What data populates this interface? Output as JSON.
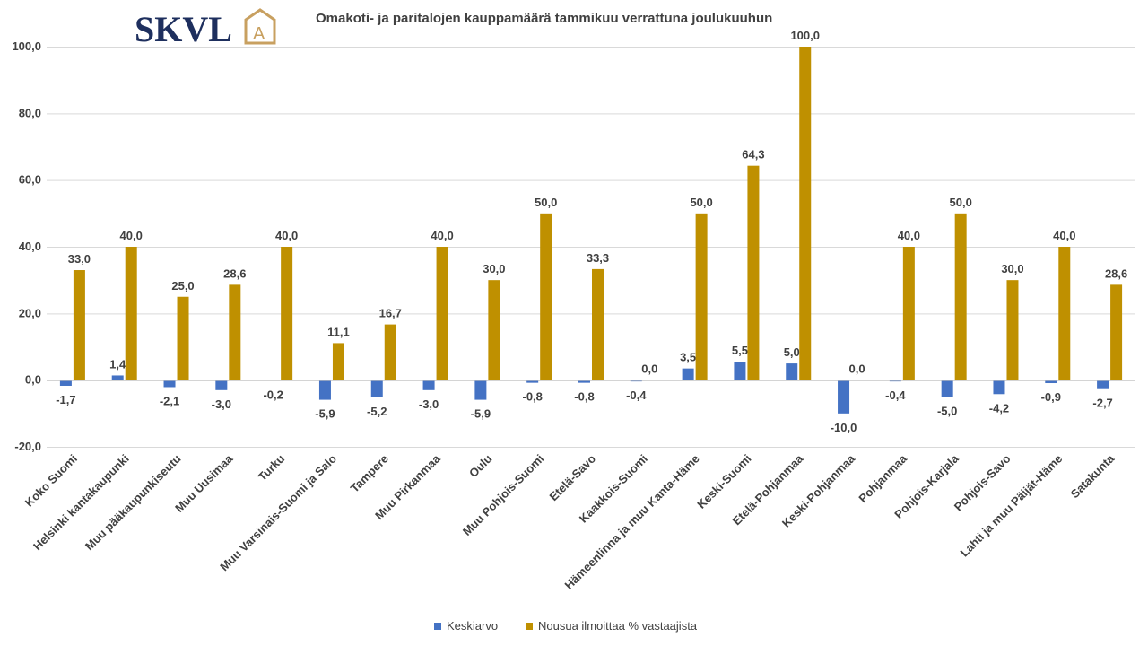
{
  "logo": {
    "text": "SKVL",
    "mark": "A",
    "colors": {
      "text": "#1e2f5e",
      "mark": "#c8a060"
    }
  },
  "chart_data": {
    "type": "bar",
    "title": "Omakoti- ja paritalojen kauppamäärä  tammikuu verrattuna joulukuuhun",
    "categories": [
      "Koko Suomi",
      "Helsinki kantakaupunki",
      "Muu pääkaupunkiseutu",
      "Muu Uusimaa",
      "Turku",
      "Muu Varsinais-Suomi ja Salo",
      "Tampere",
      "Muu Pirkanmaa",
      "Oulu",
      "Muu Pohjois-Suomi",
      "Etelä-Savo",
      "Kaakkois-Suomi",
      "Hämeenlinna ja muu Kanta-Häme",
      "Keski-Suomi",
      "Etelä-Pohjanmaa",
      "Keski-Pohjanmaa",
      "Pohjanmaa",
      "Pohjois-Karjala",
      "Pohjois-Savo",
      "Lahti ja muu Päijät-Häme",
      "Satakunta"
    ],
    "series": [
      {
        "name": "Keskiarvo",
        "color": "#4472c4",
        "values": [
          -1.7,
          1.4,
          -2.1,
          -3.0,
          -0.2,
          -5.9,
          -5.2,
          -3.0,
          -5.9,
          -0.8,
          -0.8,
          -0.4,
          3.5,
          5.5,
          5.0,
          -10.0,
          -0.4,
          -5.0,
          -4.2,
          -0.9,
          -2.7
        ],
        "labels": [
          "-1,7",
          "1,4",
          "-2,1",
          "-3,0",
          "-0,2",
          "-5,9",
          "-5,2",
          "-3,0",
          "-5,9",
          "-0,8",
          "-0,8",
          "-0,4",
          "3,5",
          "5,5",
          "5,0",
          "-10,0",
          "-0,4",
          "-5,0",
          "-4,2",
          "-0,9",
          "-2,7"
        ]
      },
      {
        "name": "Nousua ilmoittaa % vastaajista",
        "color": "#bf9000",
        "values": [
          33.0,
          40.0,
          25.0,
          28.6,
          40.0,
          11.1,
          16.7,
          40.0,
          30.0,
          50.0,
          33.3,
          0.0,
          50.0,
          64.3,
          100.0,
          0.0,
          40.0,
          50.0,
          30.0,
          40.0,
          28.6
        ],
        "labels": [
          "33,0",
          "40,0",
          "25,0",
          "28,6",
          "40,0",
          "11,1",
          "16,7",
          "40,0",
          "30,0",
          "50,0",
          "33,3",
          "0,0",
          "50,0",
          "64,3",
          "100,0",
          "0,0",
          "40,0",
          "50,0",
          "30,0",
          "40,0",
          "28,6"
        ]
      }
    ],
    "yticks": [
      "-20,0",
      "0,0",
      "20,0",
      "40,0",
      "60,0",
      "80,0",
      "100,0"
    ],
    "ylim": [
      -20,
      100
    ],
    "grid": true,
    "legend_position": "bottom"
  }
}
